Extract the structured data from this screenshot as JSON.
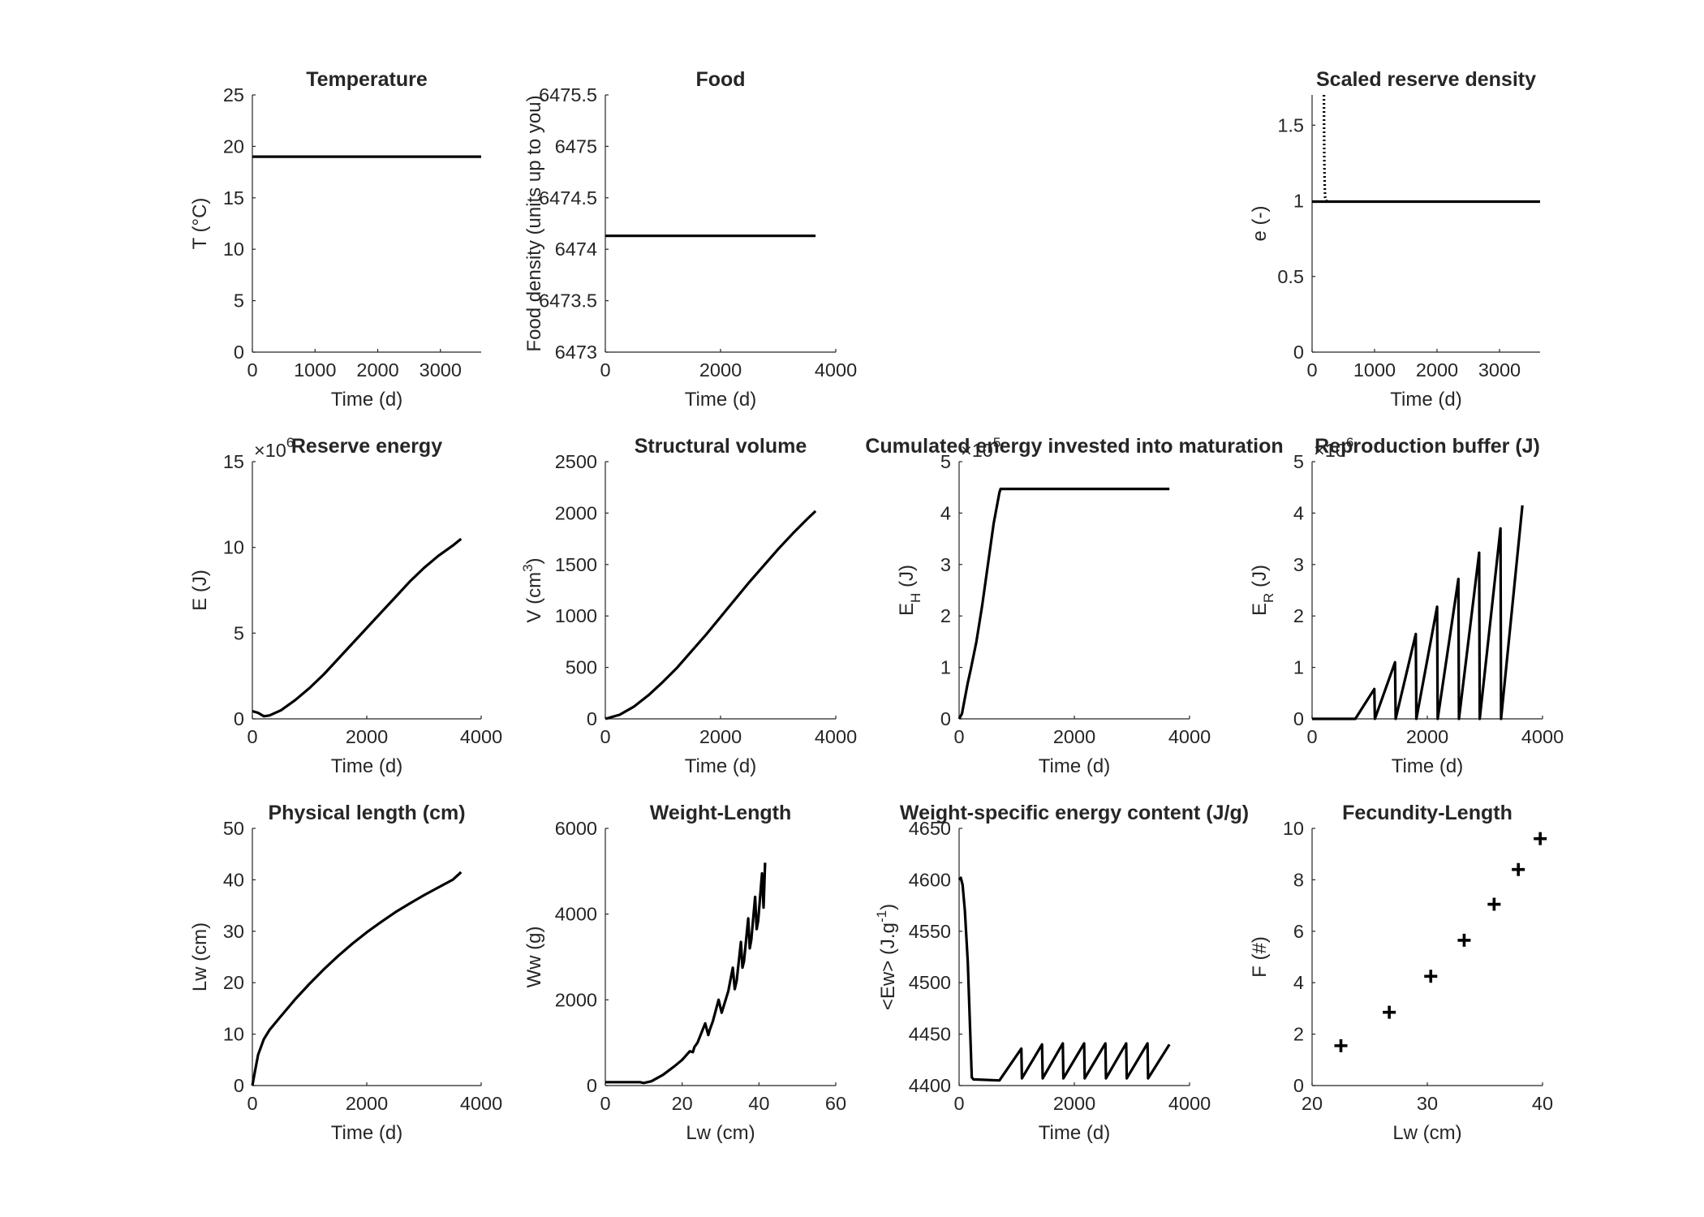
{
  "chart_data": [
    {
      "type": "line",
      "title": "Temperature",
      "xlabel": "Time (d)",
      "ylabel": "T (°C)",
      "xlim": [
        0,
        3650
      ],
      "ylim": [
        0,
        25
      ],
      "xticks": [
        0,
        1000,
        2000,
        3000
      ],
      "yticks": [
        0,
        5,
        10,
        15,
        20,
        25
      ],
      "grid": false,
      "series": [
        {
          "style": "solid",
          "x": [
            0,
            3650
          ],
          "y": [
            19,
            19
          ]
        }
      ]
    },
    {
      "type": "line",
      "title": "Food",
      "xlabel": "Time (d)",
      "ylabel": "Food density (units up to you)",
      "xlim": [
        0,
        4000
      ],
      "ylim": [
        6473,
        6475.5
      ],
      "xticks": [
        0,
        2000,
        4000
      ],
      "yticks": [
        6473,
        6473.5,
        6474,
        6474.5,
        6475,
        6475.5
      ],
      "grid": false,
      "series": [
        {
          "style": "solid",
          "x": [
            0,
            3650
          ],
          "y": [
            6474.13,
            6474.13
          ]
        }
      ]
    },
    {
      "type": "line",
      "title": "Scaled reserve density",
      "xlabel": "Time (d)",
      "ylabel": "e (-)",
      "xlim": [
        0,
        3650
      ],
      "ylim": [
        0,
        1.7
      ],
      "xticks": [
        0,
        1000,
        2000,
        3000
      ],
      "yticks": [
        0,
        0.5,
        1,
        1.5
      ],
      "grid": false,
      "series": [
        {
          "style": "dotted",
          "x": [
            190,
            192,
            195,
            200,
            205,
            210,
            225,
            250
          ],
          "y": [
            1.7,
            1.5,
            1.3,
            1.15,
            1.06,
            1.02,
            1.0,
            1.0
          ]
        },
        {
          "style": "solid",
          "x": [
            0,
            3650
          ],
          "y": [
            0.995,
            0.995
          ]
        }
      ]
    },
    {
      "type": "line",
      "title": "Reserve energy",
      "xlabel": "Time (d)",
      "ylabel": "E (J)",
      "exponent": "6",
      "xlim": [
        0,
        4000
      ],
      "ylim": [
        0,
        15
      ],
      "xticks": [
        0,
        2000,
        4000
      ],
      "yticks": [
        0,
        5,
        10,
        15
      ],
      "grid": false,
      "series": [
        {
          "style": "solid",
          "x": [
            0,
            100,
            200,
            300,
            500,
            750,
            1000,
            1250,
            1500,
            1750,
            2000,
            2250,
            2500,
            2750,
            3000,
            3250,
            3500,
            3650
          ],
          "y": [
            0.45,
            0.35,
            0.15,
            0.2,
            0.5,
            1.1,
            1.8,
            2.6,
            3.5,
            4.4,
            5.3,
            6.2,
            7.1,
            8.0,
            8.8,
            9.5,
            10.1,
            10.5
          ]
        }
      ]
    },
    {
      "type": "line",
      "title": "Structural volume",
      "xlabel": "Time (d)",
      "ylabel": "V (cm3)",
      "xlim": [
        0,
        4000
      ],
      "ylim": [
        0,
        2500
      ],
      "xticks": [
        0,
        2000,
        4000
      ],
      "yticks": [
        0,
        500,
        1000,
        1500,
        2000,
        2500
      ],
      "grid": false,
      "series": [
        {
          "style": "solid",
          "x": [
            0,
            250,
            500,
            750,
            1000,
            1250,
            1500,
            1750,
            2000,
            2250,
            2500,
            2750,
            3000,
            3250,
            3500,
            3650
          ],
          "y": [
            0,
            40,
            120,
            230,
            360,
            500,
            660,
            820,
            990,
            1160,
            1330,
            1490,
            1650,
            1800,
            1940,
            2020
          ]
        }
      ]
    },
    {
      "type": "line",
      "title": "Cumulated energy invested into maturation",
      "xlabel": "Time (d)",
      "ylabel": "EH (J)",
      "exponent": "5",
      "xlim": [
        0,
        4000
      ],
      "ylim": [
        0,
        5
      ],
      "xticks": [
        0,
        2000,
        4000
      ],
      "yticks": [
        0,
        1,
        2,
        3,
        4,
        5
      ],
      "grid": false,
      "series": [
        {
          "style": "solid",
          "x": [
            0,
            50,
            100,
            150,
            200,
            300,
            400,
            500,
            600,
            700,
            720,
            3650
          ],
          "y": [
            0,
            0.1,
            0.4,
            0.7,
            0.95,
            1.5,
            2.2,
            3.0,
            3.8,
            4.4,
            4.47,
            4.47
          ]
        }
      ]
    },
    {
      "type": "line",
      "title": "Reproduction buffer (J)",
      "xlabel": "Time (d)",
      "ylabel": "ER (J)",
      "exponent": "6",
      "xlim": [
        0,
        4000
      ],
      "ylim": [
        0,
        5
      ],
      "xticks": [
        0,
        2000,
        4000
      ],
      "yticks": [
        0,
        1,
        2,
        3,
        4,
        5
      ],
      "grid": false,
      "series": [
        {
          "style": "solid",
          "x": [
            0,
            750,
            1080,
            1090,
            1440,
            1450,
            1800,
            1810,
            2170,
            2180,
            2540,
            2550,
            2900,
            2910,
            3270,
            3280,
            3650
          ],
          "y": [
            0,
            0,
            0.58,
            0,
            1.1,
            0,
            1.65,
            0,
            2.18,
            0,
            2.72,
            0,
            3.23,
            0,
            3.7,
            0,
            4.15
          ]
        }
      ]
    },
    {
      "type": "line",
      "title": "Physical length (cm)",
      "xlabel": "Time (d)",
      "ylabel": "Lw (cm)",
      "xlim": [
        0,
        4000
      ],
      "ylim": [
        0,
        50
      ],
      "xticks": [
        0,
        2000,
        4000
      ],
      "yticks": [
        0,
        10,
        20,
        30,
        40,
        50
      ],
      "grid": false,
      "series": [
        {
          "style": "solid",
          "x": [
            0,
            50,
            100,
            200,
            300,
            500,
            750,
            1000,
            1250,
            1500,
            1750,
            2000,
            2250,
            2500,
            2750,
            3000,
            3250,
            3500,
            3650
          ],
          "y": [
            0,
            3,
            6,
            9,
            10.8,
            13.5,
            16.8,
            19.8,
            22.6,
            25.2,
            27.6,
            29.8,
            31.8,
            33.7,
            35.4,
            37.0,
            38.5,
            40.0,
            41.5
          ]
        }
      ]
    },
    {
      "type": "line",
      "title": "Weight-Length",
      "xlabel": "Lw (cm)",
      "ylabel": "Ww (g)",
      "xlim": [
        0,
        60
      ],
      "ylim": [
        0,
        6000
      ],
      "xticks": [
        0,
        20,
        40,
        60
      ],
      "yticks": [
        0,
        2000,
        4000,
        6000
      ],
      "grid": false,
      "series": [
        {
          "style": "solid",
          "x": [
            0,
            5,
            9,
            10,
            12,
            15,
            18,
            20,
            22,
            22.8,
            23.2,
            24,
            26,
            26.8,
            27.2,
            28,
            29.5,
            30.3,
            30.8,
            32,
            33.2,
            33.7,
            34.2,
            35.3,
            35.7,
            36.1,
            37.2,
            37.6,
            38,
            39,
            39.4,
            39.8,
            40.8,
            41.2,
            41.6
          ],
          "y": [
            80,
            80,
            80,
            60,
            100,
            250,
            450,
            600,
            800,
            780,
            900,
            1000,
            1450,
            1180,
            1300,
            1500,
            2000,
            1700,
            1850,
            2200,
            2750,
            2250,
            2450,
            3350,
            2750,
            2900,
            3900,
            3200,
            3400,
            4400,
            3650,
            3850,
            4950,
            4150,
            5200
          ]
        }
      ]
    },
    {
      "type": "line",
      "title": "Weight-specific energy content (J/g)",
      "xlabel": "Time (d)",
      "ylabel": "<Ew> (J.g-1)",
      "xlim": [
        0,
        4000
      ],
      "ylim": [
        4400,
        4650
      ],
      "xticks": [
        0,
        2000,
        4000
      ],
      "yticks": [
        4400,
        4450,
        4500,
        4550,
        4600,
        4650
      ],
      "grid": false,
      "series": [
        {
          "style": "solid",
          "x": [
            0,
            30,
            60,
            100,
            150,
            200,
            220,
            250,
            700,
            1080,
            1090,
            1440,
            1450,
            1800,
            1810,
            2170,
            2180,
            2540,
            2550,
            2900,
            2910,
            3270,
            3280,
            3650
          ],
          "y": [
            4600,
            4602,
            4595,
            4570,
            4520,
            4440,
            4408,
            4406,
            4405,
            4436,
            4407,
            4440,
            4407,
            4441,
            4407,
            4441,
            4407,
            4441,
            4407,
            4441,
            4407,
            4441,
            4407,
            4440
          ]
        }
      ]
    },
    {
      "type": "scatter",
      "title": "Fecundity-Length",
      "xlabel": "Lw (cm)",
      "ylabel": "F (#)",
      "xlim": [
        20,
        40
      ],
      "ylim": [
        0,
        10
      ],
      "xticks": [
        20,
        30,
        40
      ],
      "yticks": [
        0,
        2,
        4,
        6,
        8,
        10
      ],
      "grid": false,
      "series": [
        {
          "style": "marker",
          "x": [
            22.5,
            26.7,
            30.3,
            33.2,
            35.8,
            37.9,
            39.8
          ],
          "y": [
            1.55,
            2.85,
            4.25,
            5.65,
            7.05,
            8.4,
            9.6
          ]
        }
      ]
    }
  ]
}
